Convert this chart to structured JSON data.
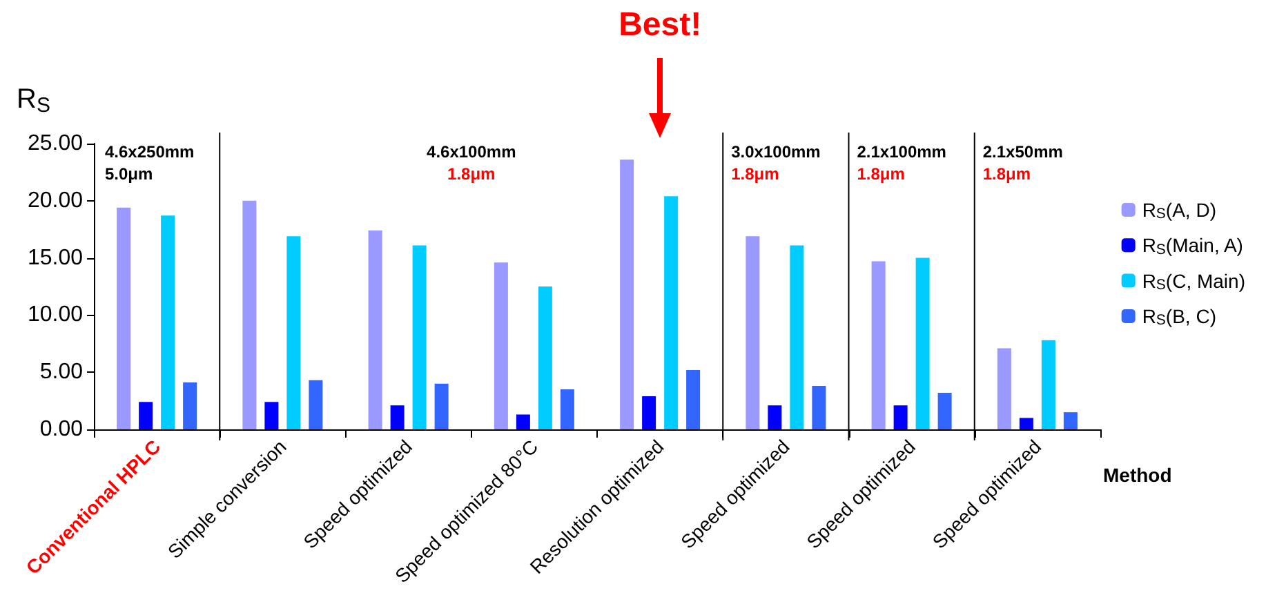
{
  "chart_data": {
    "type": "bar",
    "ylabel": "R$_{S}$",
    "xlabel": "Method",
    "categories": [
      "Conventional HPLC",
      "Simple conversion",
      "Speed optimized",
      "Speed optimized 80°C",
      "Resolution optimized",
      "Speed optimized",
      "Speed optimized",
      "Speed optimized"
    ],
    "series": [
      {
        "name": "R$_{S}$(A, D)",
        "color": "#9999ff",
        "values": [
          19.4,
          20.0,
          17.4,
          14.6,
          23.6,
          16.9,
          14.7,
          7.1
        ]
      },
      {
        "name": "R$_{S}$(Main, A)",
        "color": "#0000ff",
        "values": [
          2.4,
          2.4,
          2.1,
          1.3,
          2.9,
          2.1,
          2.1,
          1.0
        ]
      },
      {
        "name": "R$_{S}$(C, Main)",
        "color": "#00ccff",
        "values": [
          18.7,
          16.9,
          16.1,
          12.5,
          20.4,
          16.1,
          15.0,
          7.8
        ]
      },
      {
        "name": "R$_{S}$(B, C)",
        "color": "#3366ff",
        "values": [
          4.1,
          4.3,
          4.0,
          3.5,
          5.2,
          3.8,
          3.2,
          1.5
        ]
      }
    ],
    "ylim": [
      0,
      25
    ],
    "yticks": [
      {
        "value": 0,
        "label": "0.00"
      },
      {
        "value": 5,
        "label": "5.00"
      },
      {
        "value": 10,
        "label": "10.00"
      },
      {
        "value": 15,
        "label": "15.00"
      },
      {
        "value": 20,
        "label": "20.00"
      },
      {
        "value": 25,
        "label": "25.00"
      }
    ],
    "grid": false,
    "legend": "right",
    "annotations": [
      "4.6x250mm",
      "5.0μm",
      "4.6x100mm",
      "1.8μm",
      "3.0x100mm",
      "1.8μm",
      "2.1x100mm",
      "1.8μm",
      "2.1x50mm",
      "1.8μm",
      "Best!"
    ]
  }
}
